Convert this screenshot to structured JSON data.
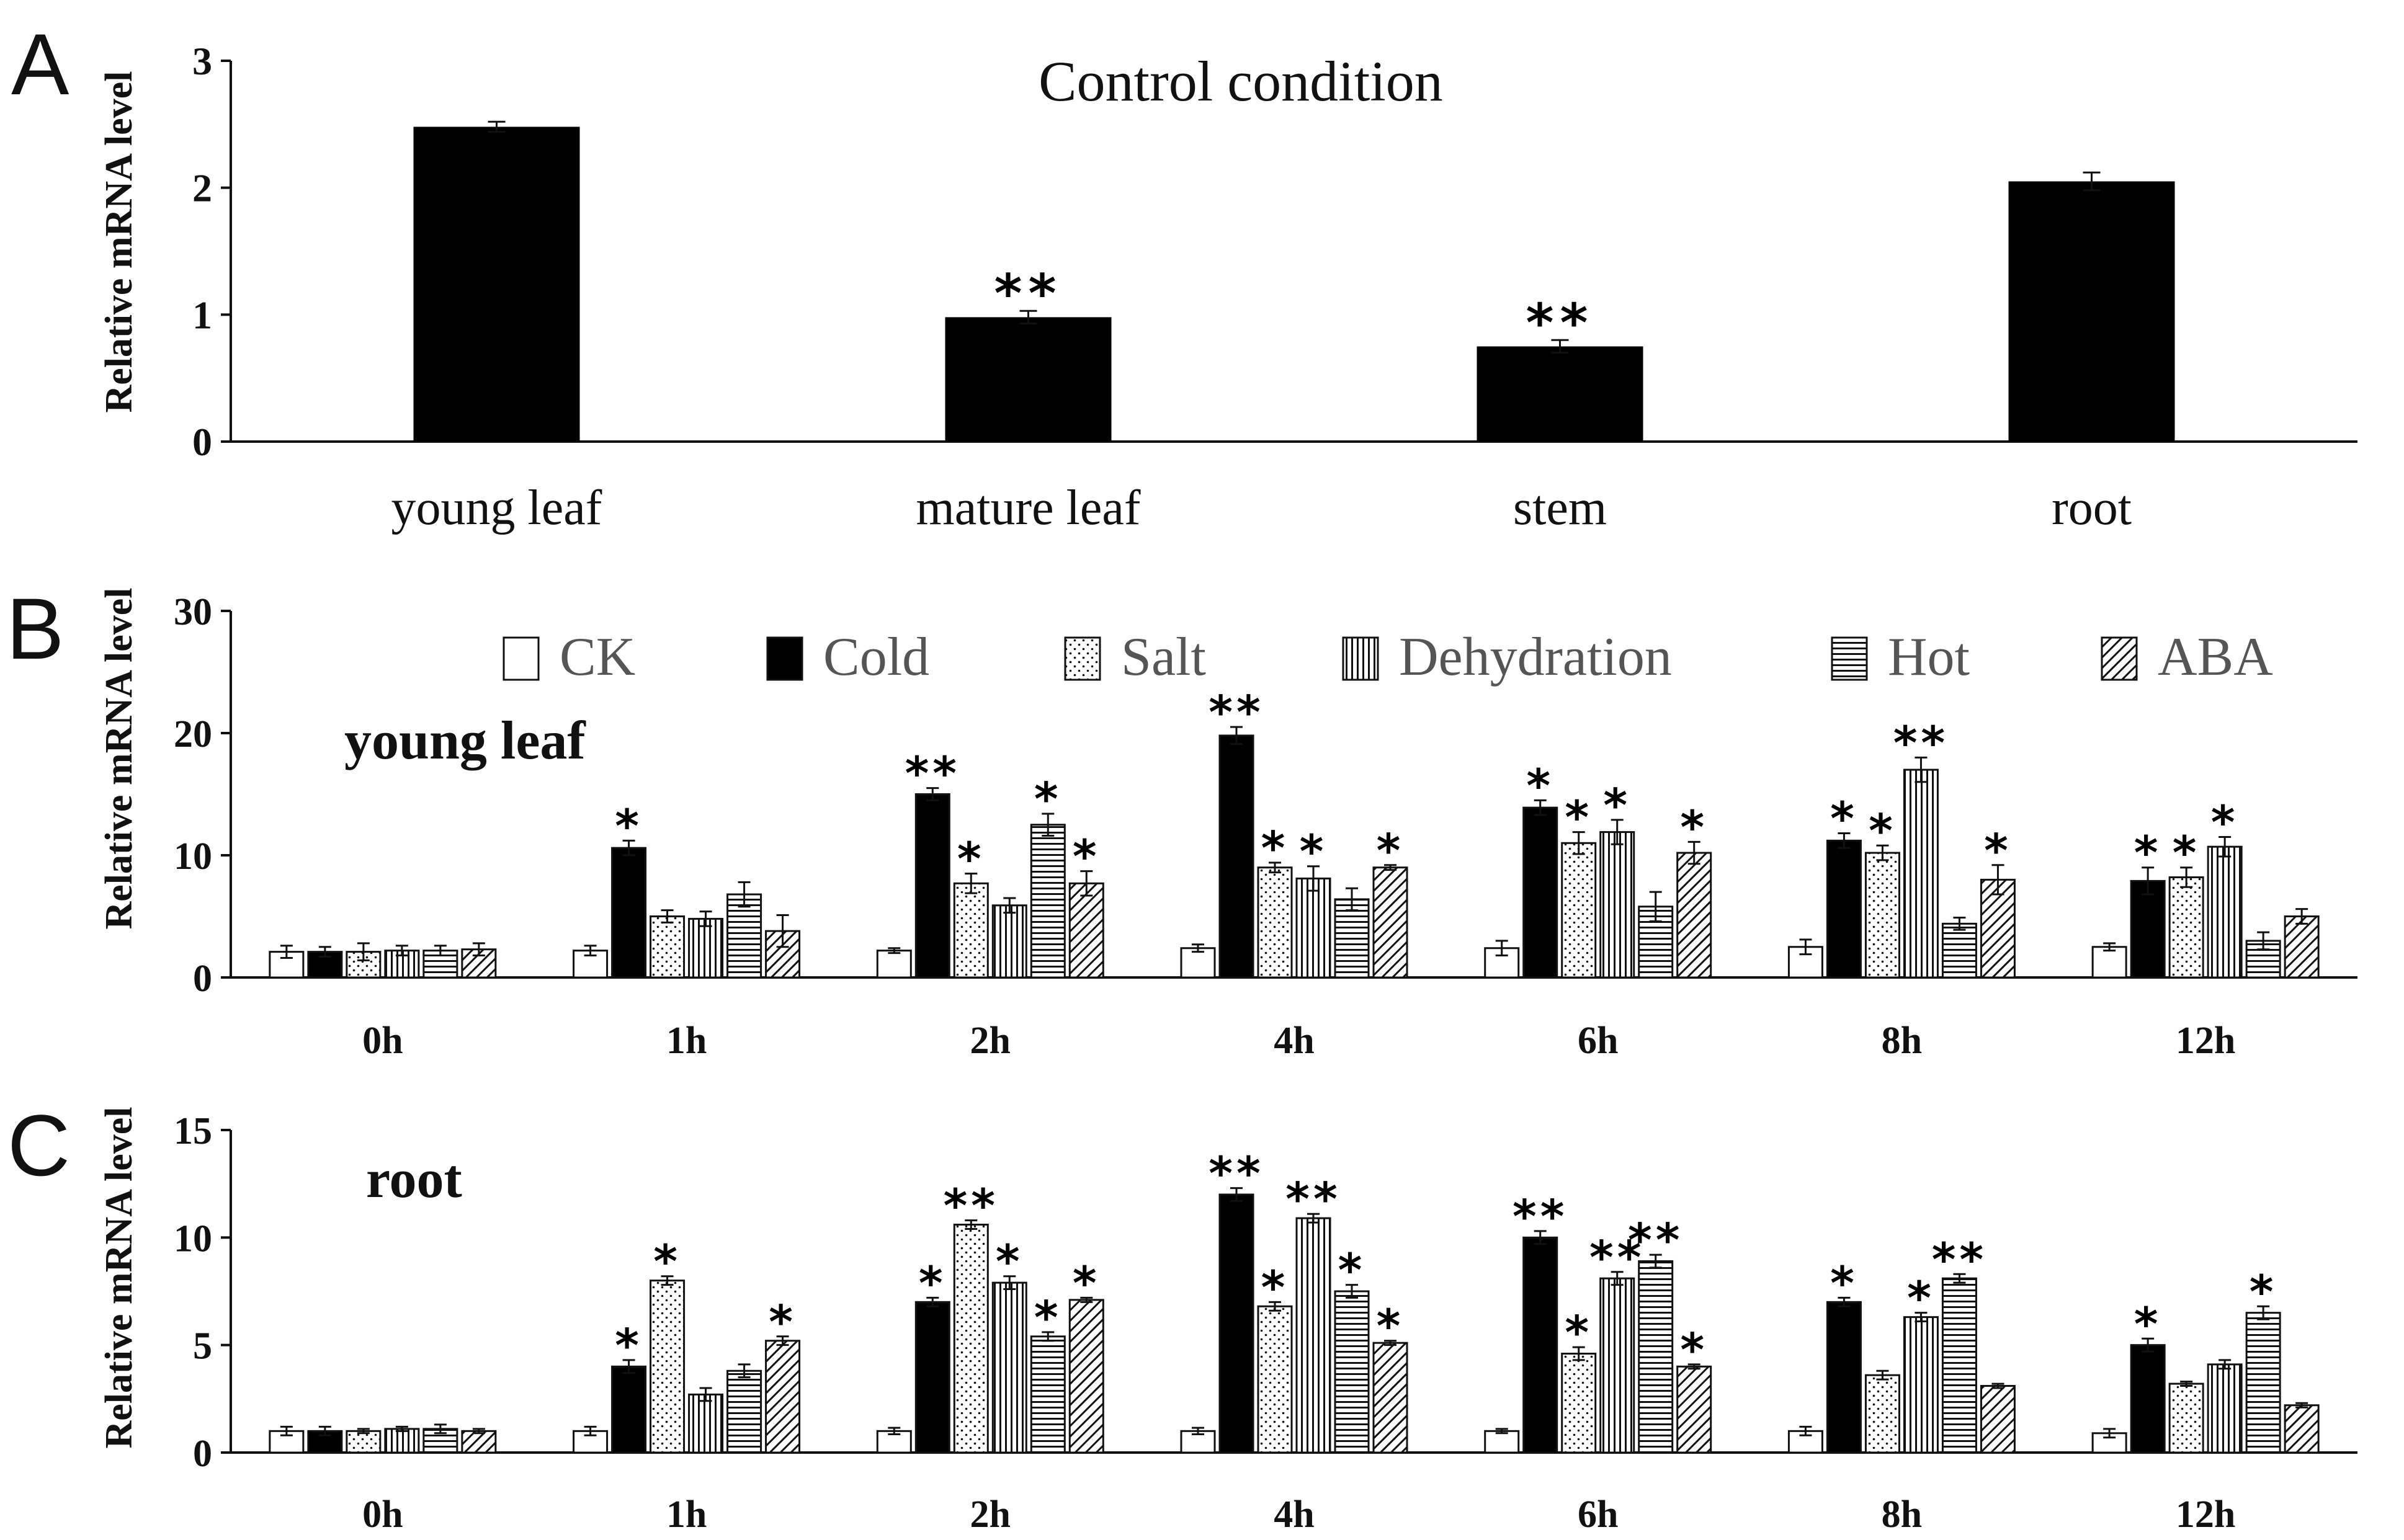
{
  "panels": {
    "A": {
      "letter": "A"
    },
    "B": {
      "letter": "B",
      "subtitle": "young leaf"
    },
    "C": {
      "letter": "C",
      "subtitle": "root"
    }
  },
  "legend": {
    "items": [
      {
        "label": "CK",
        "pattern": "ck"
      },
      {
        "label": "Cold",
        "pattern": "cold"
      },
      {
        "label": "Salt",
        "pattern": "salt"
      },
      {
        "label": "Dehydration",
        "pattern": "dehydration"
      },
      {
        "label": "Hot",
        "pattern": "hot"
      },
      {
        "label": "ABA",
        "pattern": "aba"
      }
    ]
  },
  "chart_data": [
    {
      "type": "bar",
      "panel": "A",
      "title": "Control condition",
      "ylabel": "Relative mRNA level",
      "ylim": [
        0,
        3
      ],
      "yticks": [
        "0",
        "1",
        "2",
        "3"
      ],
      "categories": [
        "young leaf",
        "mature leaf",
        "stem",
        "root"
      ],
      "values": [
        2.48,
        0.98,
        0.75,
        2.05
      ],
      "errors": [
        0.04,
        0.05,
        0.05,
        0.07
      ],
      "significance": [
        "",
        "**",
        "**",
        ""
      ]
    },
    {
      "type": "bar",
      "panel": "B",
      "title": "young leaf",
      "ylabel": "Relative mRNA level",
      "ylim": [
        0,
        30
      ],
      "yticks": [
        "0",
        "10",
        "20",
        "30"
      ],
      "categories": [
        "0h",
        "1h",
        "2h",
        "4h",
        "6h",
        "8h",
        "12h"
      ],
      "series": [
        {
          "name": "CK",
          "values": [
            2.1,
            2.2,
            2.2,
            2.4,
            2.4,
            2.5,
            2.5
          ],
          "errors": [
            0.5,
            0.4,
            0.2,
            0.3,
            0.6,
            0.6,
            0.3
          ],
          "significance": [
            "",
            "",
            "",
            "",
            "",
            "",
            ""
          ]
        },
        {
          "name": "Cold",
          "values": [
            2.1,
            10.6,
            15.0,
            19.8,
            13.9,
            11.2,
            7.9
          ],
          "errors": [
            0.4,
            0.6,
            0.5,
            0.7,
            0.6,
            0.6,
            1.1
          ],
          "significance": [
            "",
            "*",
            "**",
            "**",
            "*",
            "*",
            "*"
          ]
        },
        {
          "name": "Salt",
          "values": [
            2.1,
            5.0,
            7.7,
            9.0,
            11.0,
            10.2,
            8.2
          ],
          "errors": [
            0.7,
            0.5,
            0.8,
            0.4,
            0.9,
            0.6,
            0.8
          ],
          "significance": [
            "",
            "",
            "*",
            "*",
            "*",
            "*",
            "*"
          ]
        },
        {
          "name": "Dehydration",
          "values": [
            2.2,
            4.8,
            5.9,
            8.1,
            11.9,
            17.0,
            10.7
          ],
          "errors": [
            0.4,
            0.6,
            0.6,
            1.0,
            1.0,
            1.0,
            0.8
          ],
          "significance": [
            "",
            "",
            "",
            "*",
            "*",
            "**",
            "*"
          ]
        },
        {
          "name": "Hot",
          "values": [
            2.2,
            6.8,
            12.5,
            6.4,
            5.8,
            4.4,
            3.0
          ],
          "errors": [
            0.4,
            1.0,
            0.9,
            0.9,
            1.2,
            0.5,
            0.7
          ],
          "significance": [
            "",
            "",
            "*",
            "",
            "",
            "",
            ""
          ]
        },
        {
          "name": "ABA",
          "values": [
            2.3,
            3.8,
            7.7,
            9.0,
            10.2,
            8.0,
            5.0
          ],
          "errors": [
            0.5,
            1.3,
            1.0,
            0.2,
            0.9,
            1.2,
            0.6
          ],
          "significance": [
            "",
            "",
            "*",
            "*",
            "*",
            "*",
            ""
          ]
        }
      ]
    },
    {
      "type": "bar",
      "panel": "C",
      "title": "root",
      "ylabel": "Relative mRNA level",
      "ylim": [
        0,
        15
      ],
      "yticks": [
        "0",
        "5",
        "10",
        "15"
      ],
      "categories": [
        "0h",
        "1h",
        "2h",
        "4h",
        "6h",
        "8h",
        "12h"
      ],
      "series": [
        {
          "name": "CK",
          "values": [
            1.0,
            1.0,
            1.0,
            1.0,
            1.0,
            1.0,
            0.9
          ],
          "errors": [
            0.2,
            0.2,
            0.15,
            0.15,
            0.1,
            0.2,
            0.2
          ],
          "significance": [
            "",
            "",
            "",
            "",
            "",
            "",
            ""
          ]
        },
        {
          "name": "Cold",
          "values": [
            1.0,
            4.0,
            7.0,
            12.0,
            10.0,
            7.0,
            5.0
          ],
          "errors": [
            0.2,
            0.3,
            0.2,
            0.3,
            0.3,
            0.2,
            0.3
          ],
          "significance": [
            "",
            "*",
            "*",
            "**",
            "**",
            "*",
            "*"
          ]
        },
        {
          "name": "Salt",
          "values": [
            1.0,
            8.0,
            10.6,
            6.8,
            4.6,
            3.6,
            3.2
          ],
          "errors": [
            0.1,
            0.2,
            0.2,
            0.2,
            0.3,
            0.2,
            0.1
          ],
          "significance": [
            "",
            "*",
            "**",
            "*",
            "*",
            "",
            ""
          ]
        },
        {
          "name": "Dehydration",
          "values": [
            1.1,
            2.7,
            7.9,
            10.9,
            8.1,
            6.3,
            4.1
          ],
          "errors": [
            0.1,
            0.3,
            0.3,
            0.2,
            0.3,
            0.2,
            0.2
          ],
          "significance": [
            "",
            "",
            "*",
            "**",
            "**",
            "*",
            ""
          ]
        },
        {
          "name": "Hot",
          "values": [
            1.1,
            3.8,
            5.4,
            7.5,
            8.9,
            8.1,
            6.5
          ],
          "errors": [
            0.2,
            0.3,
            0.2,
            0.3,
            0.3,
            0.2,
            0.3
          ],
          "significance": [
            "",
            "",
            "*",
            "*",
            "**",
            "**",
            "*"
          ]
        },
        {
          "name": "ABA",
          "values": [
            1.0,
            5.2,
            7.1,
            5.1,
            4.0,
            3.1,
            2.2
          ],
          "errors": [
            0.1,
            0.2,
            0.1,
            0.1,
            0.1,
            0.1,
            0.1
          ],
          "significance": [
            "",
            "*",
            "*",
            "*",
            "*",
            "",
            ""
          ]
        }
      ]
    }
  ]
}
